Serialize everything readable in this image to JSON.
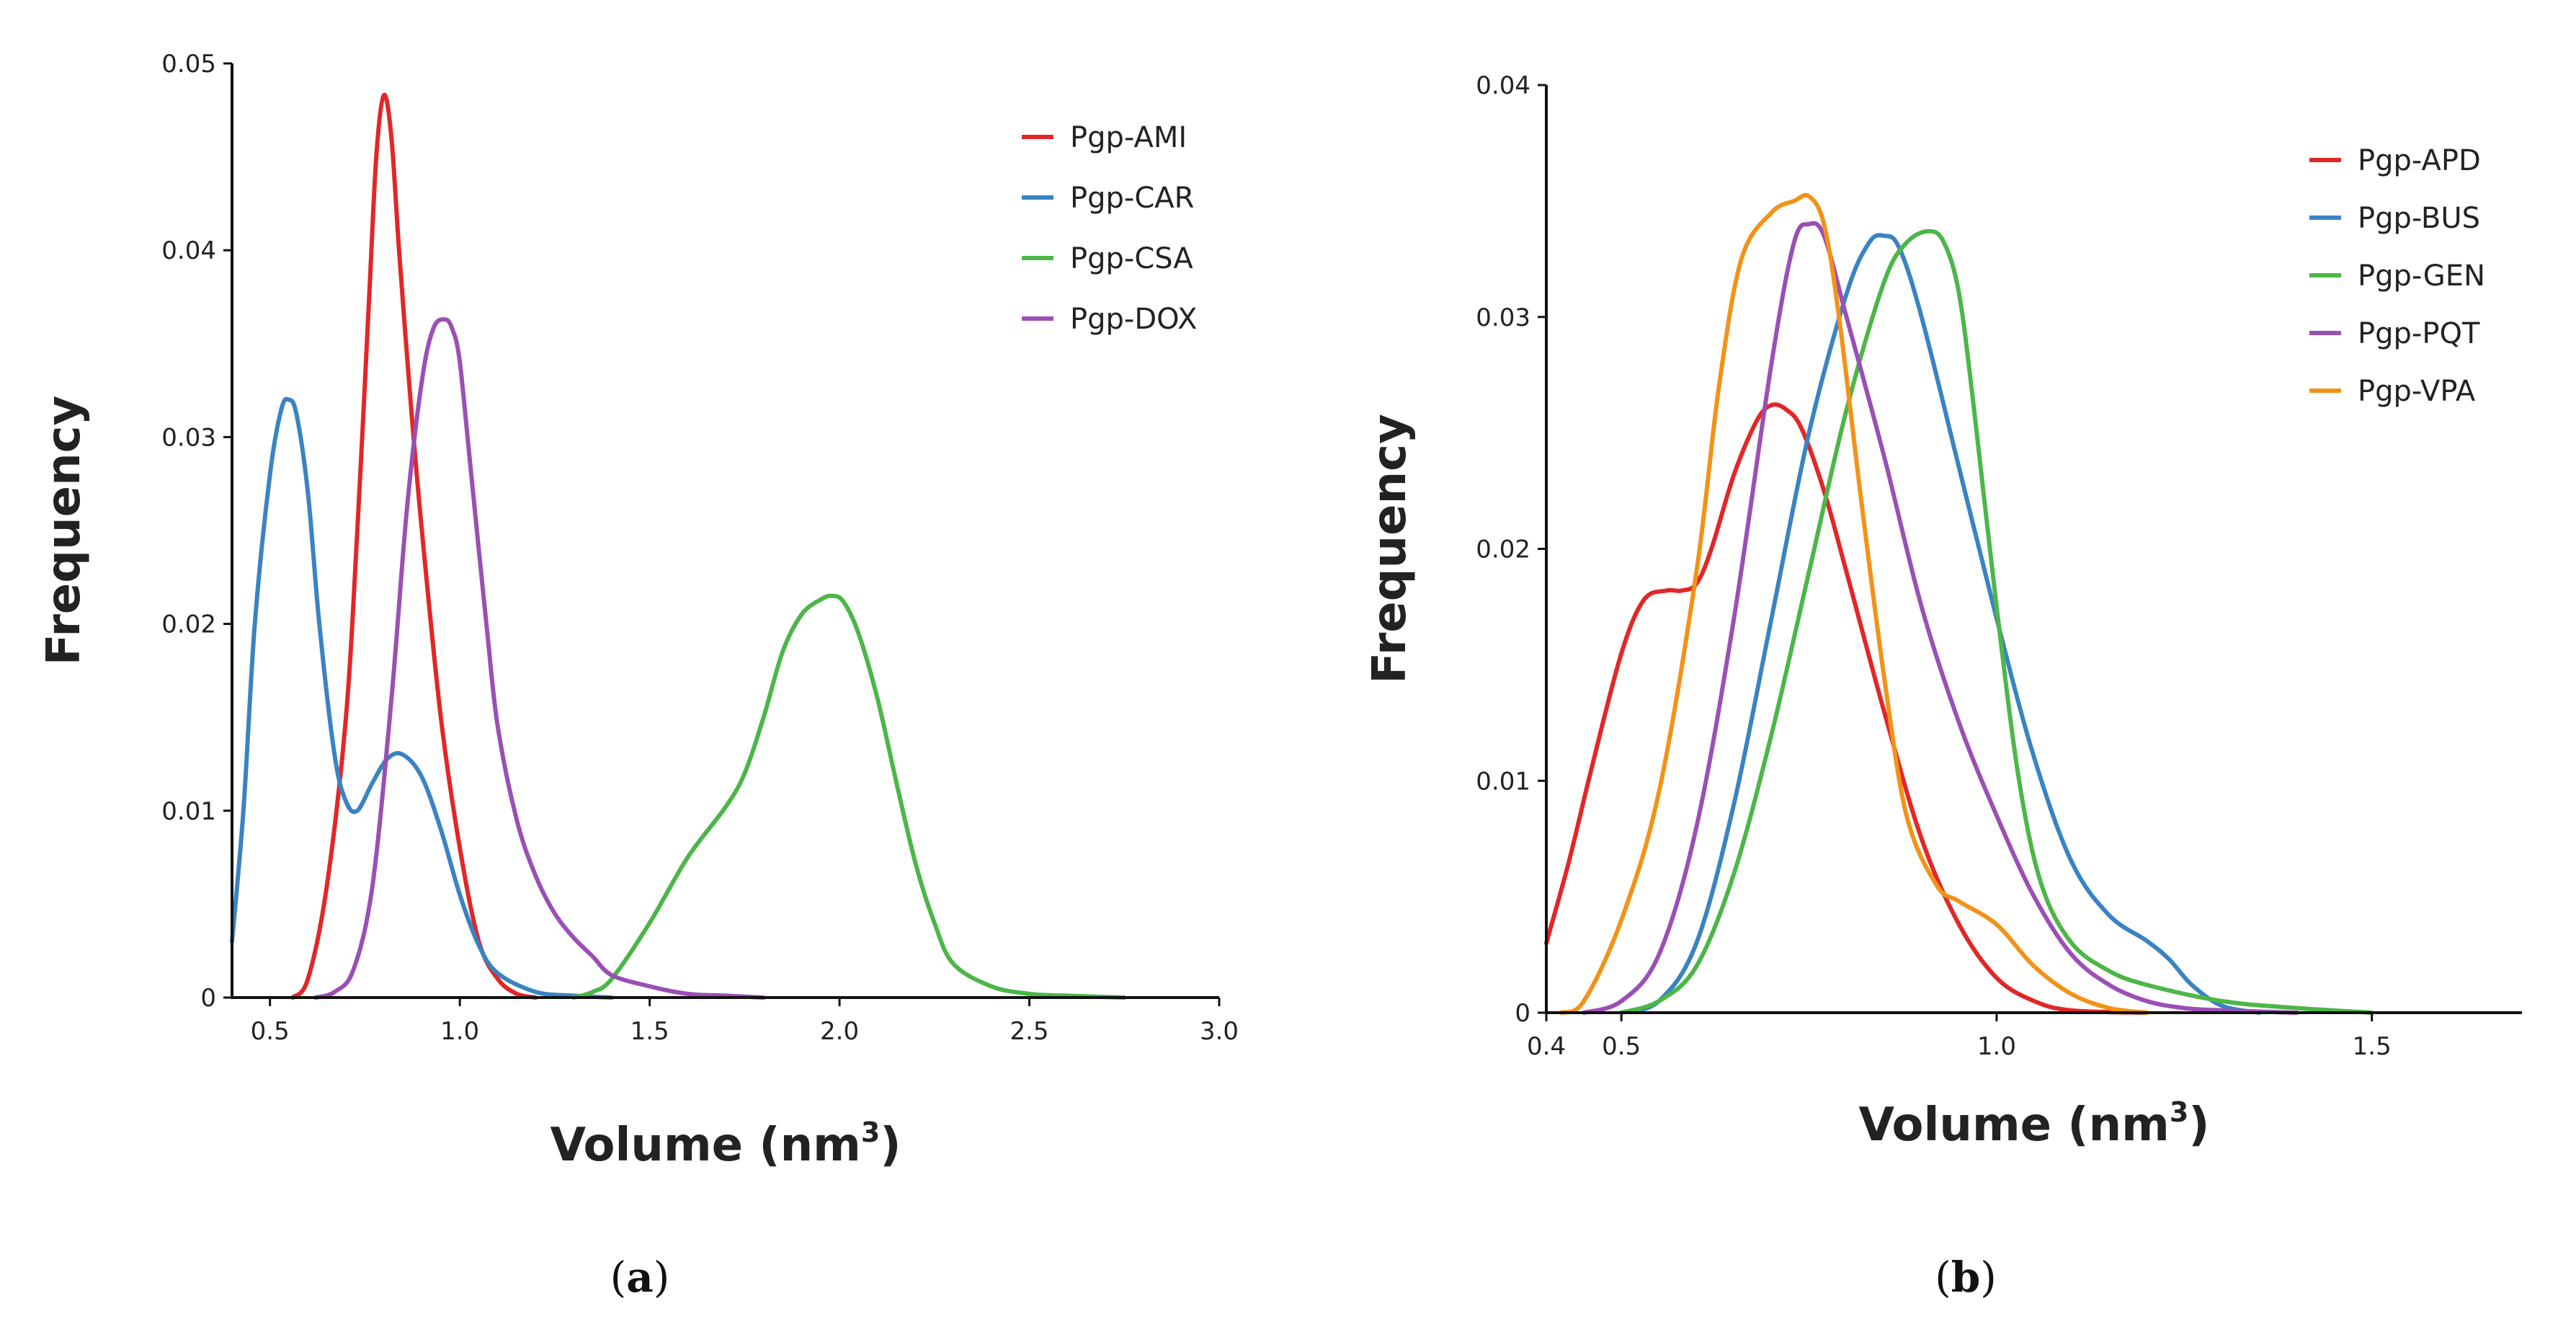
{
  "colors": {
    "red": "#e32626",
    "blue": "#3a83c3",
    "green": "#4cb648",
    "purple": "#9b4fb5",
    "orange": "#f39217",
    "axis": "#111111",
    "text": "#222222"
  },
  "chart_data": [
    {
      "type": "line",
      "panel_label": {
        "open": "(",
        "letter": "a",
        "close": ")"
      },
      "title": "",
      "xlabel": "Volume (nm",
      "xlabel_sup": "3",
      "xlabel_close": ")",
      "ylabel": "Frequency",
      "xlim": [
        0.4,
        3.0
      ],
      "ylim": [
        0,
        0.05
      ],
      "xticks": [
        0.5,
        1.0,
        1.5,
        2.0,
        2.5,
        3.0
      ],
      "xtick_labels": [
        "0.5",
        "1.0",
        "1.5",
        "2.0",
        "2.5",
        "3.0"
      ],
      "yticks": [
        0,
        0.01,
        0.02,
        0.03,
        0.04,
        0.05
      ],
      "ytick_labels": [
        "0",
        "0.01",
        "0.02",
        "0.03",
        "0.04",
        "0.05"
      ],
      "grid": false,
      "legend_position": "top-right",
      "series": [
        {
          "name": "Pgp-AMI",
          "color": "red",
          "x": [
            0.56,
            0.6,
            0.65,
            0.7,
            0.73,
            0.76,
            0.78,
            0.8,
            0.82,
            0.84,
            0.87,
            0.9,
            0.95,
            1.0,
            1.05,
            1.1,
            1.15,
            1.2
          ],
          "y": [
            0,
            0.001,
            0.006,
            0.015,
            0.025,
            0.037,
            0.045,
            0.0483,
            0.046,
            0.04,
            0.032,
            0.025,
            0.015,
            0.008,
            0.003,
            0.001,
            0.0002,
            0
          ]
        },
        {
          "name": "Pgp-CAR",
          "color": "blue",
          "x": [
            0.4,
            0.43,
            0.46,
            0.5,
            0.53,
            0.55,
            0.57,
            0.6,
            0.63,
            0.67,
            0.7,
            0.73,
            0.77,
            0.81,
            0.85,
            0.9,
            0.95,
            1.0,
            1.05,
            1.1,
            1.2,
            1.3,
            1.4
          ],
          "y": [
            0.003,
            0.01,
            0.02,
            0.028,
            0.0315,
            0.032,
            0.0312,
            0.027,
            0.02,
            0.013,
            0.0105,
            0.01,
            0.0115,
            0.0128,
            0.013,
            0.0118,
            0.009,
            0.0055,
            0.0028,
            0.0013,
            0.0003,
            0.0001,
            0
          ]
        },
        {
          "name": "Pgp-CSA",
          "color": "green",
          "x": [
            1.3,
            1.35,
            1.4,
            1.5,
            1.6,
            1.7,
            1.75,
            1.8,
            1.85,
            1.9,
            1.95,
            1.98,
            2.01,
            2.05,
            2.1,
            2.15,
            2.2,
            2.25,
            2.3,
            2.4,
            2.5,
            2.6,
            2.75
          ],
          "y": [
            0,
            0.0003,
            0.001,
            0.004,
            0.0075,
            0.0102,
            0.012,
            0.015,
            0.0185,
            0.0205,
            0.0213,
            0.0215,
            0.0212,
            0.0195,
            0.016,
            0.0115,
            0.0072,
            0.004,
            0.0018,
            0.0006,
            0.0002,
            0.0001,
            0
          ]
        },
        {
          "name": "Pgp-DOX",
          "color": "purple",
          "x": [
            0.62,
            0.67,
            0.72,
            0.77,
            0.82,
            0.86,
            0.9,
            0.93,
            0.96,
            0.98,
            1.0,
            1.03,
            1.07,
            1.1,
            1.15,
            1.2,
            1.25,
            1.3,
            1.35,
            1.4,
            1.5,
            1.6,
            1.7,
            1.8
          ],
          "y": [
            0,
            0.0003,
            0.0015,
            0.006,
            0.016,
            0.026,
            0.033,
            0.0358,
            0.0363,
            0.0358,
            0.034,
            0.028,
            0.02,
            0.0145,
            0.0095,
            0.0065,
            0.0045,
            0.0032,
            0.0022,
            0.0012,
            0.0006,
            0.0002,
            0.0001,
            0
          ]
        }
      ]
    },
    {
      "type": "line",
      "panel_label": {
        "open": "(",
        "letter": "b",
        "close": ")"
      },
      "title": "",
      "xlabel": "Volume (nm",
      "xlabel_sup": "3",
      "xlabel_close": ")",
      "ylabel": "Frequency",
      "xlim": [
        0.4,
        1.7
      ],
      "ylim": [
        0,
        0.04
      ],
      "xticks": [
        0.4,
        0.5,
        1.0,
        1.5
      ],
      "xtick_labels": [
        "0.4",
        "0.5",
        "1.0",
        "1.5"
      ],
      "yticks": [
        0,
        0.01,
        0.02,
        0.03,
        0.04
      ],
      "ytick_labels": [
        "0",
        "0.01",
        "0.02",
        "0.03",
        "0.04"
      ],
      "grid": false,
      "legend_position": "top-right",
      "series": [
        {
          "name": "Pgp-APD",
          "color": "red",
          "x": [
            0.4,
            0.43,
            0.46,
            0.5,
            0.53,
            0.56,
            0.58,
            0.6,
            0.62,
            0.65,
            0.68,
            0.7,
            0.72,
            0.74,
            0.77,
            0.8,
            0.85,
            0.9,
            0.95,
            1.0,
            1.05,
            1.1,
            1.2
          ],
          "y": [
            0.003,
            0.0065,
            0.0105,
            0.0155,
            0.0178,
            0.0182,
            0.0182,
            0.0185,
            0.02,
            0.0232,
            0.0255,
            0.0262,
            0.026,
            0.0252,
            0.0225,
            0.019,
            0.013,
            0.0075,
            0.0038,
            0.0015,
            0.0005,
            0.0001,
            0
          ]
        },
        {
          "name": "Pgp-BUS",
          "color": "blue",
          "x": [
            0.5,
            0.55,
            0.6,
            0.65,
            0.7,
            0.75,
            0.8,
            0.83,
            0.85,
            0.87,
            0.9,
            0.95,
            1.0,
            1.05,
            1.1,
            1.15,
            1.2,
            1.23,
            1.26,
            1.3,
            1.35
          ],
          "y": [
            0,
            0.0005,
            0.003,
            0.009,
            0.017,
            0.025,
            0.031,
            0.0332,
            0.0335,
            0.033,
            0.03,
            0.0235,
            0.017,
            0.011,
            0.0065,
            0.0042,
            0.0031,
            0.0023,
            0.0012,
            0.0003,
            0
          ]
        },
        {
          "name": "Pgp-GEN",
          "color": "green",
          "x": [
            0.5,
            0.55,
            0.6,
            0.65,
            0.7,
            0.75,
            0.8,
            0.85,
            0.88,
            0.91,
            0.93,
            0.95,
            0.97,
            1.0,
            1.03,
            1.06,
            1.1,
            1.15,
            1.2,
            1.3,
            1.4,
            1.5
          ],
          "y": [
            0,
            0.0005,
            0.002,
            0.006,
            0.012,
            0.019,
            0.026,
            0.0315,
            0.0332,
            0.0337,
            0.0332,
            0.031,
            0.026,
            0.0175,
            0.01,
            0.0055,
            0.003,
            0.0018,
            0.0012,
            0.0005,
            0.0002,
            0
          ]
        },
        {
          "name": "Pgp-PQT",
          "color": "purple",
          "x": [
            0.45,
            0.5,
            0.55,
            0.6,
            0.65,
            0.7,
            0.73,
            0.75,
            0.77,
            0.8,
            0.85,
            0.9,
            0.95,
            1.0,
            1.05,
            1.1,
            1.15,
            1.2,
            1.25,
            1.3,
            1.4
          ],
          "y": [
            0,
            0.0005,
            0.0025,
            0.008,
            0.017,
            0.028,
            0.0332,
            0.034,
            0.0335,
            0.03,
            0.024,
            0.0175,
            0.0125,
            0.0085,
            0.005,
            0.0025,
            0.0012,
            0.0005,
            0.0002,
            0.0001,
            0
          ]
        },
        {
          "name": "Pgp-VPA",
          "color": "orange",
          "x": [
            0.42,
            0.45,
            0.5,
            0.55,
            0.6,
            0.63,
            0.66,
            0.7,
            0.73,
            0.75,
            0.77,
            0.79,
            0.82,
            0.85,
            0.88,
            0.92,
            0.95,
            1.0,
            1.05,
            1.1,
            1.15,
            1.2
          ],
          "y": [
            0,
            0.0005,
            0.004,
            0.0095,
            0.019,
            0.027,
            0.0325,
            0.0345,
            0.035,
            0.0352,
            0.034,
            0.03,
            0.022,
            0.0145,
            0.0085,
            0.0055,
            0.0048,
            0.0038,
            0.002,
            0.0008,
            0.0002,
            0
          ]
        }
      ]
    }
  ]
}
